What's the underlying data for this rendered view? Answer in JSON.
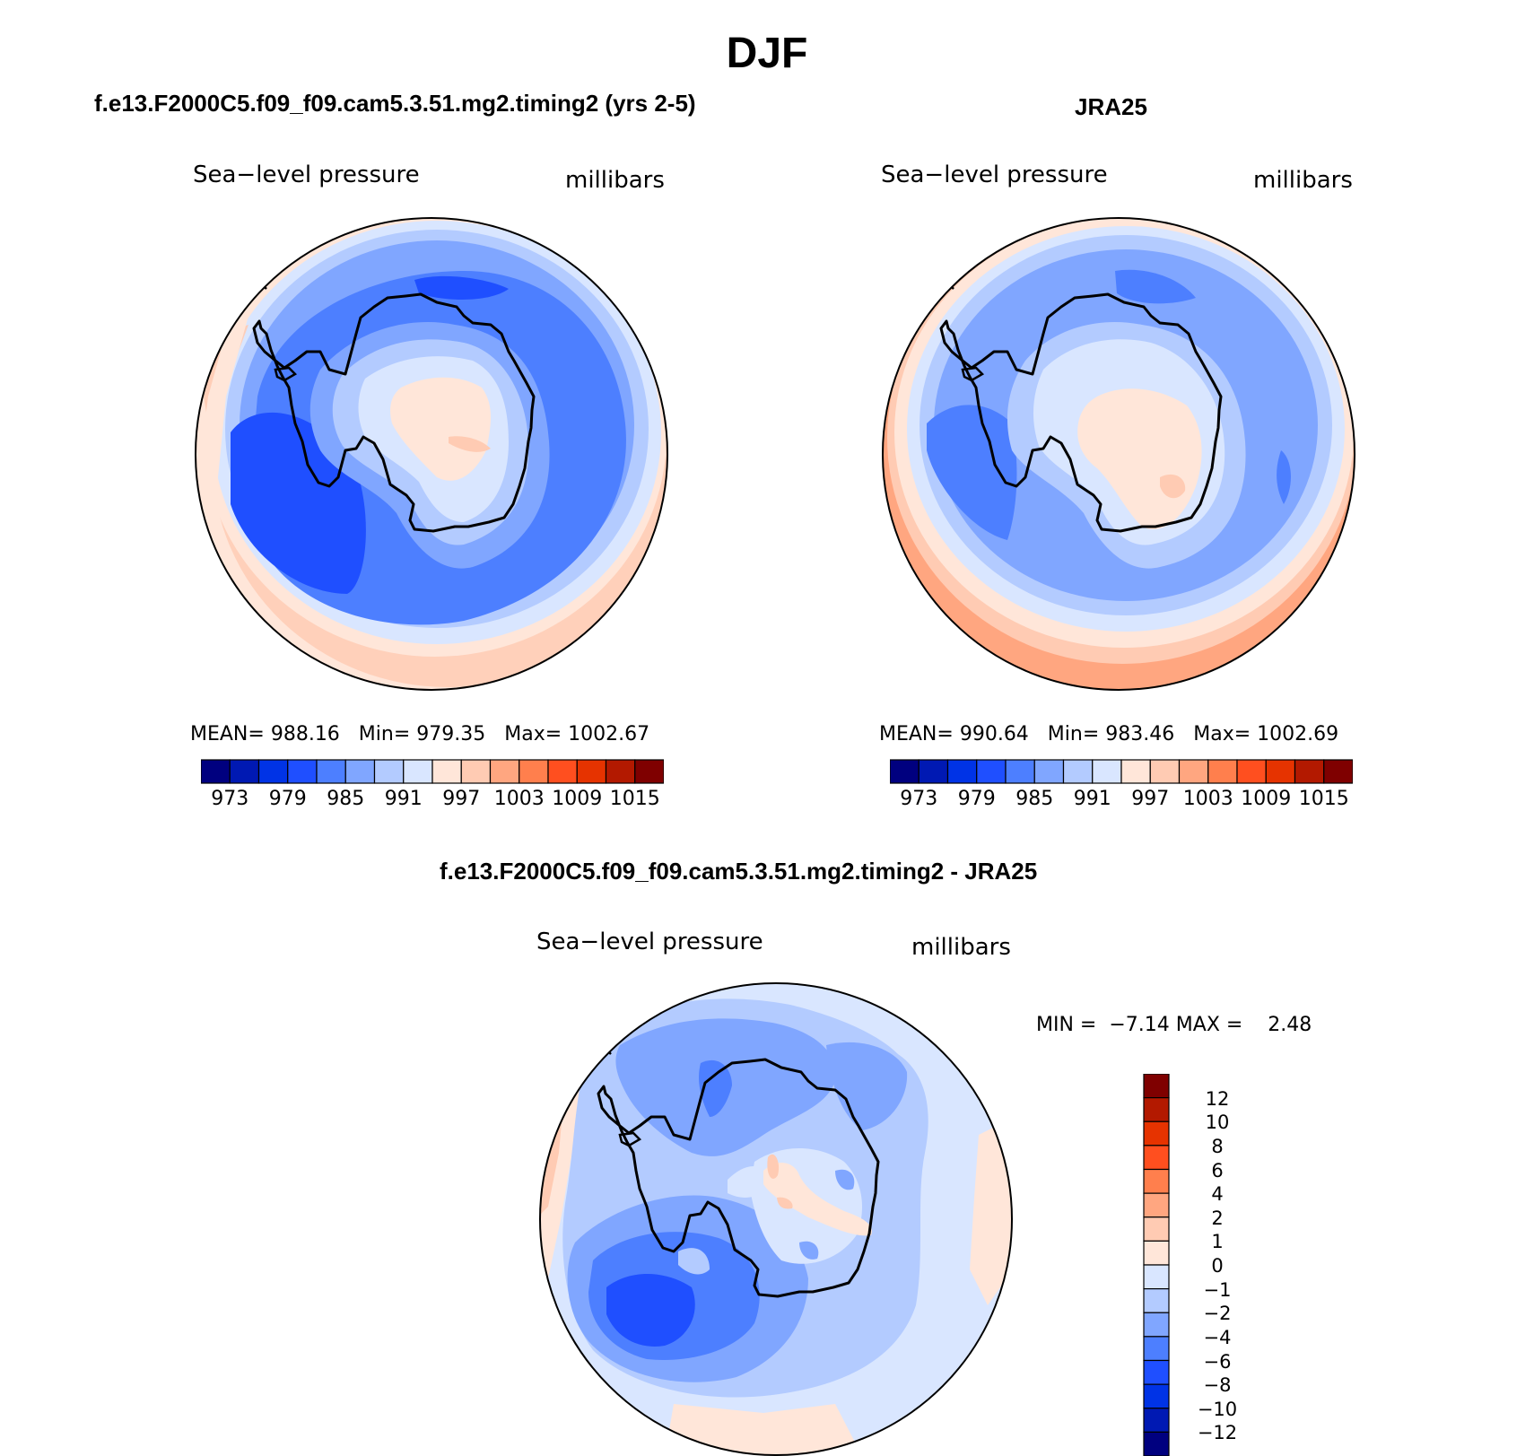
{
  "main_title": "DJF",
  "palette": [
    "#00007f",
    "#0019b3",
    "#0033e6",
    "#1f4fff",
    "#4d7fff",
    "#80a6ff",
    "#b3cbff",
    "#d9e6ff",
    "#ffe6d9",
    "#ffcbb3",
    "#ffa680",
    "#ff7f4d",
    "#ff4f1f",
    "#e63300",
    "#b31900",
    "#7f0000"
  ],
  "panels": [
    {
      "title": "f.e13.F2000C5.f09_f09.cam5.3.51.mg2.timing2 (yrs 2-5)",
      "variable": "Sea−level pressure",
      "units": "millibars",
      "stats": {
        "mean_label": "MEAN=",
        "mean": "988.16",
        "min_label": "Min=",
        "min": "979.35",
        "max_label": "Max=",
        "max": "1002.67"
      },
      "colorbar_ticks": [
        "973",
        "979",
        "985",
        "991",
        "997",
        "1003",
        "1009",
        "1015"
      ]
    },
    {
      "title": "JRA25",
      "variable": "Sea−level pressure",
      "units": "millibars",
      "stats": {
        "mean_label": "MEAN=",
        "mean": "990.64",
        "min_label": "Min=",
        "min": "983.46",
        "max_label": "Max=",
        "max": "1002.69"
      },
      "colorbar_ticks": [
        "973",
        "979",
        "985",
        "991",
        "997",
        "1003",
        "1009",
        "1015"
      ]
    }
  ],
  "diff_panel": {
    "title": "f.e13.F2000C5.f09_f09.cam5.3.51.mg2.timing2 - JRA25",
    "variable": "Sea−level pressure",
    "units": "millibars",
    "min_label": "MIN =",
    "min": "−7.14",
    "max_label": "MAX =",
    "max": "2.48",
    "colorbar_ticks": [
      "12",
      "10",
      "8",
      "6",
      "4",
      "2",
      "1",
      "0",
      "−1",
      "−2",
      "−4",
      "−6",
      "−8",
      "−10",
      "−12"
    ]
  }
}
